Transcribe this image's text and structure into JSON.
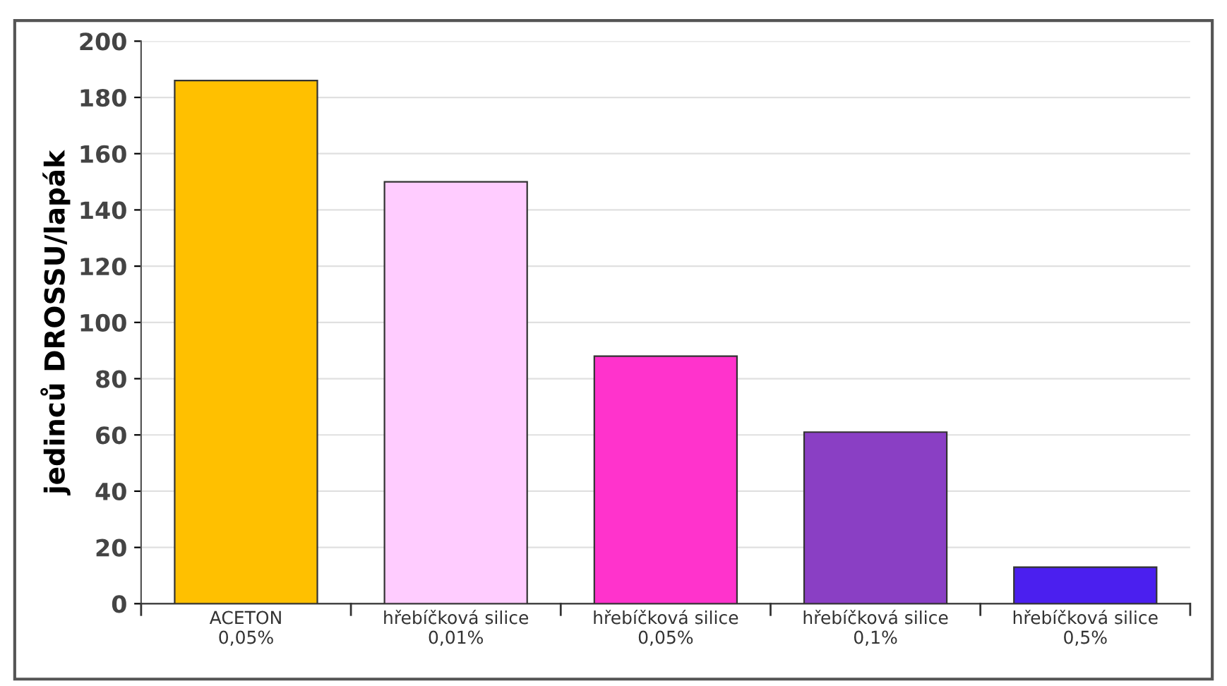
{
  "chart_data": {
    "type": "bar",
    "ylabel": "jedinců DROSSU/lapák",
    "categories": [
      "ACETON\n0,05%",
      "hřebíčková silice\n0,01%",
      "hřebíčková silice\n0,05%",
      "hřebíčková silice\n0,1%",
      "hřebíčková silice\n0,5%"
    ],
    "values": [
      186,
      150,
      88,
      61,
      13
    ],
    "colors": [
      "#ffc000",
      "#ffccff",
      "#ff33cc",
      "#8a3fc4",
      "#4b1fef"
    ],
    "ylim": [
      0,
      200
    ],
    "yticks": [
      0,
      20,
      40,
      60,
      80,
      100,
      120,
      140,
      160,
      180,
      200
    ],
    "grid": "y",
    "legend": false
  }
}
